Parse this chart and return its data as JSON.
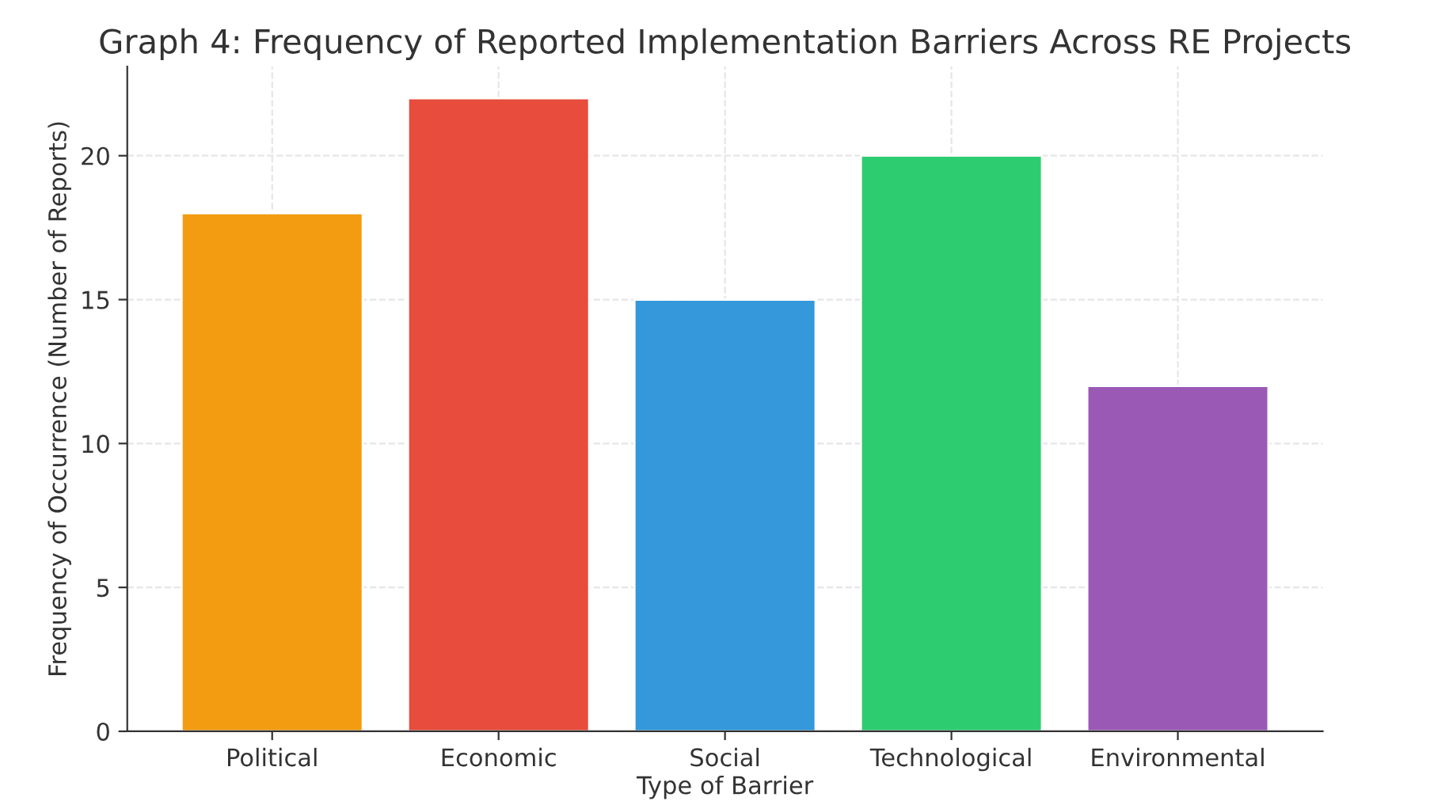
{
  "chart_data": {
    "type": "bar",
    "title": "Graph 4: Frequency of Reported Implementation Barriers Across RE Projects",
    "xlabel": "Type of Barrier",
    "ylabel": "Frequency of Occurrence (Number of Reports)",
    "categories": [
      "Political",
      "Economic",
      "Social",
      "Technological",
      "Environmental"
    ],
    "values": [
      18,
      22,
      15,
      20,
      12
    ],
    "colors": [
      "#f39c12",
      "#e74c3c",
      "#3498db",
      "#2ecc71",
      "#9b59b6"
    ],
    "ylim": [
      0,
      23.1
    ],
    "yticks": [
      0,
      5,
      10,
      15,
      20
    ],
    "grid": true
  }
}
